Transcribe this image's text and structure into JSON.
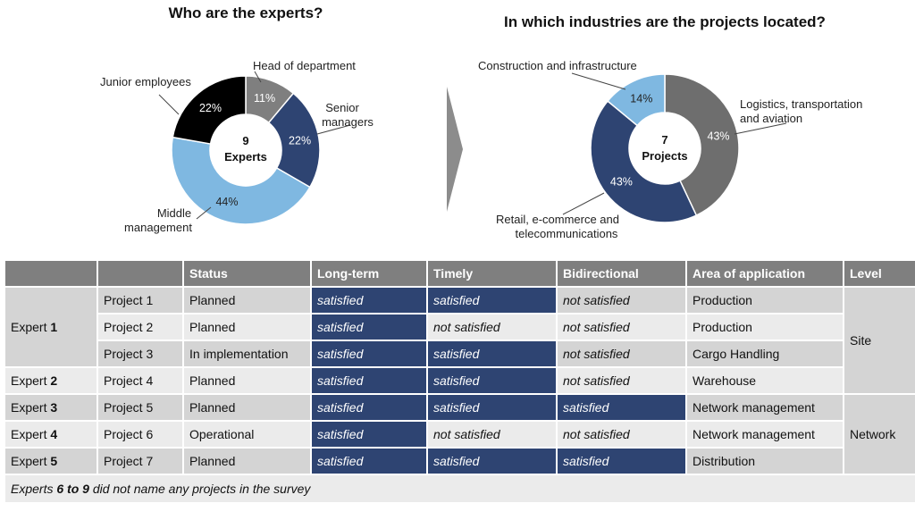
{
  "chart_data": [
    {
      "type": "pie",
      "title": "Who are the experts?",
      "center_value": "9",
      "center_label": "Experts",
      "slices": [
        {
          "label": "Head of department",
          "value": 11,
          "display": "11%",
          "color": "#7f7f7f"
        },
        {
          "label": "Senior managers",
          "value": 22,
          "display": "22%",
          "color": "#2e4472"
        },
        {
          "label": "Middle management",
          "value": 44,
          "display": "44%",
          "color": "#7fb8e1"
        },
        {
          "label": "Junior employees",
          "value": 22,
          "display": "22%",
          "color": "#000000"
        }
      ]
    },
    {
      "type": "pie",
      "title": "In which industries are the projects located?",
      "center_value": "7",
      "center_label": "Projects",
      "slices": [
        {
          "label": "Logistics, transportation and aviation",
          "value": 43,
          "display": "43%",
          "color": "#6e6e6e"
        },
        {
          "label": "Retail, e-commerce and telecommunications",
          "value": 43,
          "display": "43%",
          "color": "#2e4472"
        },
        {
          "label": "Construction and infrastructure",
          "value": 14,
          "display": "14%",
          "color": "#7fb8e1"
        }
      ]
    }
  ],
  "table": {
    "headers": [
      "",
      "",
      "Status",
      "Long-term",
      "Timely",
      "Bidirectional",
      "Area of application",
      "Level"
    ],
    "rows": [
      {
        "expert": "Expert 1",
        "project": "Project 1",
        "status": "Planned",
        "long_term": "satisfied",
        "timely": "satisfied",
        "bidirectional": "not satisfied",
        "area": "Production"
      },
      {
        "expert": "",
        "project": "Project 2",
        "status": "Planned",
        "long_term": "satisfied",
        "timely": "not satisfied",
        "bidirectional": "not satisfied",
        "area": "Production"
      },
      {
        "expert": "",
        "project": "Project 3",
        "status": "In implementation",
        "long_term": "satisfied",
        "timely": "satisfied",
        "bidirectional": "not satisfied",
        "area": "Cargo Handling"
      },
      {
        "expert": "Expert 2",
        "project": "Project 4",
        "status": "Planned",
        "long_term": "satisfied",
        "timely": "satisfied",
        "bidirectional": "not satisfied",
        "area": "Warehouse"
      },
      {
        "expert": "Expert 3",
        "project": "Project 5",
        "status": "Planned",
        "long_term": "satisfied",
        "timely": "satisfied",
        "bidirectional": "satisfied",
        "area": "Network management"
      },
      {
        "expert": "Expert 4",
        "project": "Project 6",
        "status": "Operational",
        "long_term": "satisfied",
        "timely": "not satisfied",
        "bidirectional": "not satisfied",
        "area": "Network management"
      },
      {
        "expert": "Expert 5",
        "project": "Project 7",
        "status": "Planned",
        "long_term": "satisfied",
        "timely": "satisfied",
        "bidirectional": "satisfied",
        "area": "Distribution"
      }
    ],
    "levels": [
      "Site",
      "Network"
    ],
    "footnote": "Experts 6 to 9 did not name any projects in the survey"
  }
}
